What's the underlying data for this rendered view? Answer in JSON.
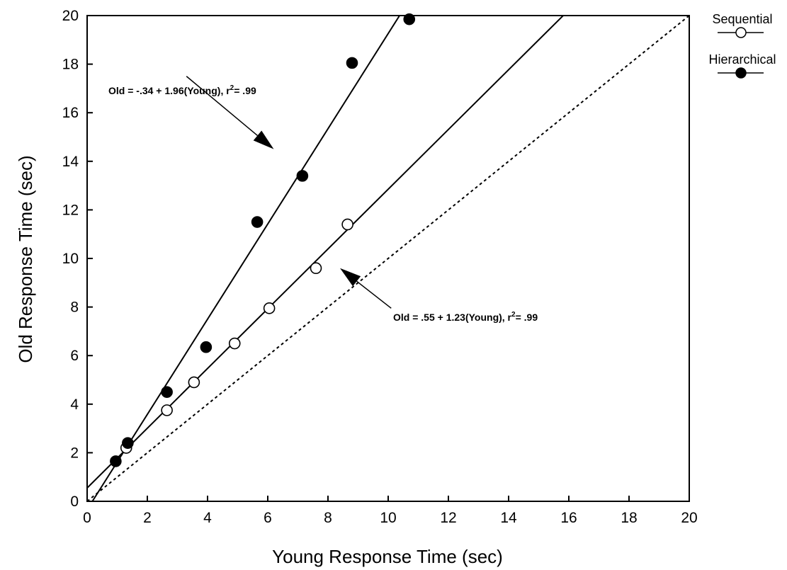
{
  "chart_data": {
    "type": "scatter",
    "xlabel": "Young Response Time (sec)",
    "ylabel": "Old Response Time (sec)",
    "xlim": [
      0,
      20
    ],
    "ylim": [
      0,
      20
    ],
    "xticks": [
      "0",
      "2",
      "4",
      "6",
      "8",
      "10",
      "12",
      "14",
      "16",
      "18",
      "20"
    ],
    "yticks": [
      "0",
      "2",
      "4",
      "6",
      "8",
      "10",
      "12",
      "14",
      "16",
      "18",
      "20"
    ],
    "grid": false,
    "legend_position": "top-right outside",
    "series": [
      {
        "name": "Sequential",
        "marker": "open-circle",
        "color": "#000000",
        "points": [
          {
            "x": 1.3,
            "y": 2.2
          },
          {
            "x": 2.65,
            "y": 3.75
          },
          {
            "x": 3.55,
            "y": 4.9
          },
          {
            "x": 4.9,
            "y": 6.5
          },
          {
            "x": 6.05,
            "y": 7.95
          },
          {
            "x": 7.6,
            "y": 9.6
          },
          {
            "x": 8.65,
            "y": 11.4
          }
        ],
        "fit": {
          "intercept": 0.55,
          "slope": 1.23
        }
      },
      {
        "name": "Hierarchical",
        "marker": "filled-circle",
        "color": "#000000",
        "points": [
          {
            "x": 0.95,
            "y": 1.65
          },
          {
            "x": 1.35,
            "y": 2.4
          },
          {
            "x": 2.65,
            "y": 4.5
          },
          {
            "x": 3.95,
            "y": 6.35
          },
          {
            "x": 5.65,
            "y": 11.5
          },
          {
            "x": 7.15,
            "y": 13.4
          },
          {
            "x": 8.8,
            "y": 18.05
          },
          {
            "x": 10.7,
            "y": 19.85
          }
        ],
        "fit": {
          "intercept": -0.34,
          "slope": 1.96
        }
      }
    ],
    "reference_line": {
      "style": "dashed",
      "intercept": 0,
      "slope": 1
    },
    "annotations": [
      {
        "id": "hier-eq",
        "text": "Old = -.34 + 1.96(Young), r",
        "sup": "2",
        "tail": "= .99",
        "arrow_from": [
          3.3,
          17.5
        ],
        "arrow_to": [
          6.2,
          14.5
        ]
      },
      {
        "id": "seq-eq",
        "text": "Old = .55 + 1.23(Young), r",
        "sup": "2",
        "tail": "= .99",
        "arrow_from": [
          10.1,
          7.95
        ],
        "arrow_to": [
          8.4,
          9.6
        ]
      }
    ]
  }
}
